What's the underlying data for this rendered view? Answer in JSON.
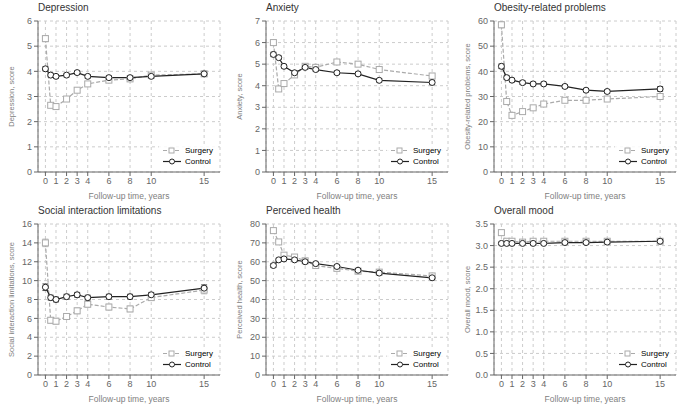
{
  "chart_data": [
    {
      "type": "line",
      "title": "Depression",
      "x_label": "Follow-up time, years",
      "y_label": "Depression, score",
      "x": [
        0,
        0.5,
        1,
        2,
        3,
        4,
        6,
        8,
        10,
        15
      ],
      "series": [
        {
          "name": "Surgery",
          "color": "#aaaaaa",
          "line_style": "dashed",
          "marker": "square",
          "values": [
            5.3,
            2.65,
            2.6,
            2.9,
            3.25,
            3.5,
            3.65,
            3.7,
            3.85,
            3.9
          ],
          "error": [
            0.12,
            0.08,
            0.08,
            0.08,
            0.08,
            0.08,
            0.08,
            0.08,
            0.08,
            0.1
          ]
        },
        {
          "name": "Control",
          "color": "#222222",
          "line_style": "solid",
          "marker": "circle",
          "values": [
            4.1,
            3.85,
            3.8,
            3.85,
            3.95,
            3.8,
            3.75,
            3.75,
            3.8,
            3.9
          ],
          "error": [
            0.08,
            0.07,
            0.07,
            0.07,
            0.07,
            0.07,
            0.07,
            0.07,
            0.07,
            0.1
          ]
        }
      ],
      "xlim": [
        -0.7,
        16.5
      ],
      "xticks": [
        0,
        1,
        2,
        3,
        4,
        6,
        8,
        10,
        15
      ],
      "ylim": [
        0,
        6
      ],
      "yticks": [
        0,
        1,
        2,
        3,
        4,
        5,
        6
      ],
      "grid": true,
      "legend": "lower right"
    },
    {
      "type": "line",
      "title": "Anxiety",
      "x_label": "Follow-up time, years",
      "y_label": "Anxiety, score",
      "x": [
        0,
        0.5,
        1,
        2,
        3,
        4,
        6,
        8,
        10,
        15
      ],
      "series": [
        {
          "name": "Surgery",
          "color": "#aaaaaa",
          "line_style": "dashed",
          "marker": "square",
          "values": [
            6.0,
            3.85,
            4.1,
            4.5,
            4.9,
            4.85,
            5.1,
            5.0,
            4.75,
            4.45
          ],
          "error": [
            0.12,
            0.1,
            0.1,
            0.1,
            0.1,
            0.1,
            0.1,
            0.1,
            0.1,
            0.12
          ]
        },
        {
          "name": "Control",
          "color": "#222222",
          "line_style": "solid",
          "marker": "circle",
          "values": [
            5.45,
            5.3,
            4.9,
            4.6,
            4.85,
            4.75,
            4.6,
            4.55,
            4.25,
            4.15
          ],
          "error": [
            0.1,
            0.08,
            0.08,
            0.08,
            0.08,
            0.08,
            0.08,
            0.08,
            0.08,
            0.1
          ]
        }
      ],
      "xlim": [
        -0.7,
        16.5
      ],
      "xticks": [
        0,
        1,
        2,
        3,
        4,
        6,
        8,
        10,
        15
      ],
      "ylim": [
        0,
        7
      ],
      "yticks": [
        0,
        1,
        2,
        3,
        4,
        5,
        6,
        7
      ],
      "grid": true,
      "legend": "lower right"
    },
    {
      "type": "line",
      "title": "Obesity-related problems",
      "x_label": "Follow-up time, years",
      "y_label": "Obesity-related problems, score",
      "x": [
        0,
        0.5,
        1,
        2,
        3,
        4,
        6,
        8,
        10,
        15
      ],
      "series": [
        {
          "name": "Surgery",
          "color": "#aaaaaa",
          "line_style": "dashed",
          "marker": "square",
          "values": [
            58.5,
            28.0,
            22.5,
            24.0,
            25.5,
            27.0,
            28.5,
            28.5,
            29.0,
            30.0
          ],
          "error": [
            1.2,
            0.8,
            0.7,
            0.7,
            0.7,
            0.7,
            0.7,
            0.7,
            0.7,
            0.9
          ]
        },
        {
          "name": "Control",
          "color": "#222222",
          "line_style": "solid",
          "marker": "circle",
          "values": [
            42.0,
            37.5,
            36.5,
            35.5,
            35.0,
            35.0,
            34.0,
            32.5,
            32.0,
            33.0
          ],
          "error": [
            0.9,
            0.7,
            0.7,
            0.7,
            0.7,
            0.7,
            0.7,
            0.7,
            0.7,
            0.9
          ]
        }
      ],
      "xlim": [
        -0.7,
        16.5
      ],
      "xticks": [
        0,
        1,
        2,
        3,
        4,
        6,
        8,
        10,
        15
      ],
      "ylim": [
        0,
        60
      ],
      "yticks": [
        0,
        10,
        20,
        30,
        40,
        50,
        60
      ],
      "grid": true,
      "legend": "lower right"
    },
    {
      "type": "line",
      "title": "Social interaction limitations",
      "x_label": "Follow-up time, years",
      "y_label": "Social interaction limitations, score",
      "x": [
        0,
        0.5,
        1,
        2,
        3,
        4,
        6,
        8,
        10,
        15
      ],
      "series": [
        {
          "name": "Surgery",
          "color": "#aaaaaa",
          "line_style": "dashed",
          "marker": "square",
          "values": [
            14.0,
            5.8,
            5.7,
            6.2,
            6.8,
            7.5,
            7.2,
            7.0,
            8.2,
            9.0
          ],
          "error": [
            0.4,
            0.3,
            0.3,
            0.3,
            0.3,
            0.3,
            0.3,
            0.3,
            0.3,
            0.4
          ]
        },
        {
          "name": "Control",
          "color": "#222222",
          "line_style": "solid",
          "marker": "circle",
          "values": [
            9.3,
            8.2,
            8.0,
            8.3,
            8.5,
            8.2,
            8.3,
            8.3,
            8.5,
            9.2
          ],
          "error": [
            0.35,
            0.25,
            0.25,
            0.25,
            0.25,
            0.25,
            0.25,
            0.25,
            0.25,
            0.35
          ]
        }
      ],
      "xlim": [
        -0.7,
        16.5
      ],
      "xticks": [
        0,
        1,
        2,
        3,
        4,
        6,
        8,
        10,
        15
      ],
      "ylim": [
        0,
        16
      ],
      "yticks": [
        0,
        2,
        4,
        6,
        8,
        10,
        12,
        14,
        16
      ],
      "grid": true,
      "legend": "lower right"
    },
    {
      "type": "line",
      "title": "Perceived health",
      "x_label": "Follow-up time, years",
      "y_label": "Perceived health, score",
      "x": [
        0,
        0.5,
        1,
        2,
        3,
        4,
        6,
        8,
        10,
        15
      ],
      "series": [
        {
          "name": "Surgery",
          "color": "#aaaaaa",
          "line_style": "dashed",
          "marker": "square",
          "values": [
            76.5,
            70.5,
            63.5,
            62.5,
            60.5,
            58.0,
            56.5,
            55.0,
            54.5,
            52.5
          ],
          "error": [
            1.2,
            1.0,
            1.0,
            1.0,
            1.0,
            1.0,
            1.0,
            1.0,
            1.0,
            1.2
          ]
        },
        {
          "name": "Control",
          "color": "#222222",
          "line_style": "solid",
          "marker": "circle",
          "values": [
            58.0,
            61.0,
            61.5,
            61.0,
            60.0,
            59.0,
            57.5,
            55.5,
            54.0,
            51.5
          ],
          "error": [
            1.0,
            0.8,
            0.8,
            0.8,
            0.8,
            0.8,
            0.8,
            0.8,
            0.8,
            1.0
          ]
        }
      ],
      "xlim": [
        -0.7,
        16.5
      ],
      "xticks": [
        0,
        1,
        2,
        3,
        4,
        6,
        8,
        10,
        15
      ],
      "ylim": [
        0,
        80
      ],
      "yticks": [
        0,
        10,
        20,
        30,
        40,
        50,
        60,
        70,
        80
      ],
      "grid": true,
      "legend": "lower right"
    },
    {
      "type": "line",
      "title": "Overall mood",
      "x_label": "Follow-up time, years",
      "y_label": "Overall mood, score",
      "x": [
        0,
        0.5,
        1,
        2,
        3,
        4,
        6,
        8,
        10,
        15
      ],
      "series": [
        {
          "name": "Surgery",
          "color": "#aaaaaa",
          "line_style": "dashed",
          "marker": "square",
          "values": [
            3.3,
            3.1,
            3.1,
            3.08,
            3.1,
            3.1,
            3.1,
            3.1,
            3.1,
            3.1
          ],
          "error": [
            0.04,
            0.03,
            0.03,
            0.03,
            0.03,
            0.03,
            0.03,
            0.03,
            0.03,
            0.04
          ]
        },
        {
          "name": "Control",
          "color": "#222222",
          "line_style": "solid",
          "marker": "circle",
          "values": [
            3.05,
            3.05,
            3.05,
            3.05,
            3.05,
            3.05,
            3.07,
            3.07,
            3.08,
            3.1
          ],
          "error": [
            0.03,
            0.03,
            0.03,
            0.03,
            0.03,
            0.03,
            0.03,
            0.03,
            0.03,
            0.04
          ]
        }
      ],
      "xlim": [
        -0.7,
        16.5
      ],
      "xticks": [
        0,
        1,
        2,
        3,
        4,
        6,
        8,
        10,
        15
      ],
      "ylim": [
        0.0,
        3.5
      ],
      "yticks": [
        {
          "value": 0.0,
          "label": "0.0"
        },
        0.5,
        {
          "value": 1.0,
          "label": "1.0"
        },
        1.5,
        {
          "value": 2.0,
          "label": "2.0"
        },
        2.5,
        {
          "value": 3.0,
          "label": "3.0"
        },
        3.5
      ],
      "grid": true,
      "legend": "lower right"
    }
  ]
}
